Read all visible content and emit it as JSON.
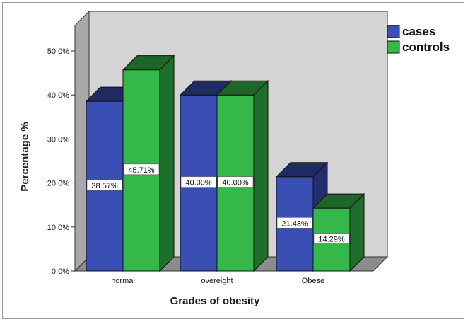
{
  "chart_data": {
    "type": "bar",
    "categories": [
      "normal",
      "overeight",
      "Obese"
    ],
    "series": [
      {
        "name": "cases",
        "values": [
          38.57,
          40.0,
          21.43
        ],
        "labels": [
          "38.57%",
          "40.00%",
          "21.43%"
        ],
        "color": "#3a4fb4"
      },
      {
        "name": "controls",
        "values": [
          45.71,
          40.0,
          14.29
        ],
        "labels": [
          "45.71%",
          "40.00%",
          "14.29%"
        ],
        "color": "#35b84a"
      }
    ],
    "title": "",
    "xlabel": "Grades of obesity",
    "ylabel": "Percentage %",
    "ylim": [
      0,
      50
    ],
    "yticks": [
      "0.0%",
      "10.0%",
      "20.0%",
      "30.0%",
      "40.0%",
      "50.0%"
    ],
    "grid": false,
    "legend_position": "top-right",
    "three_d": true,
    "backwall_color": "#d4d4d4"
  }
}
